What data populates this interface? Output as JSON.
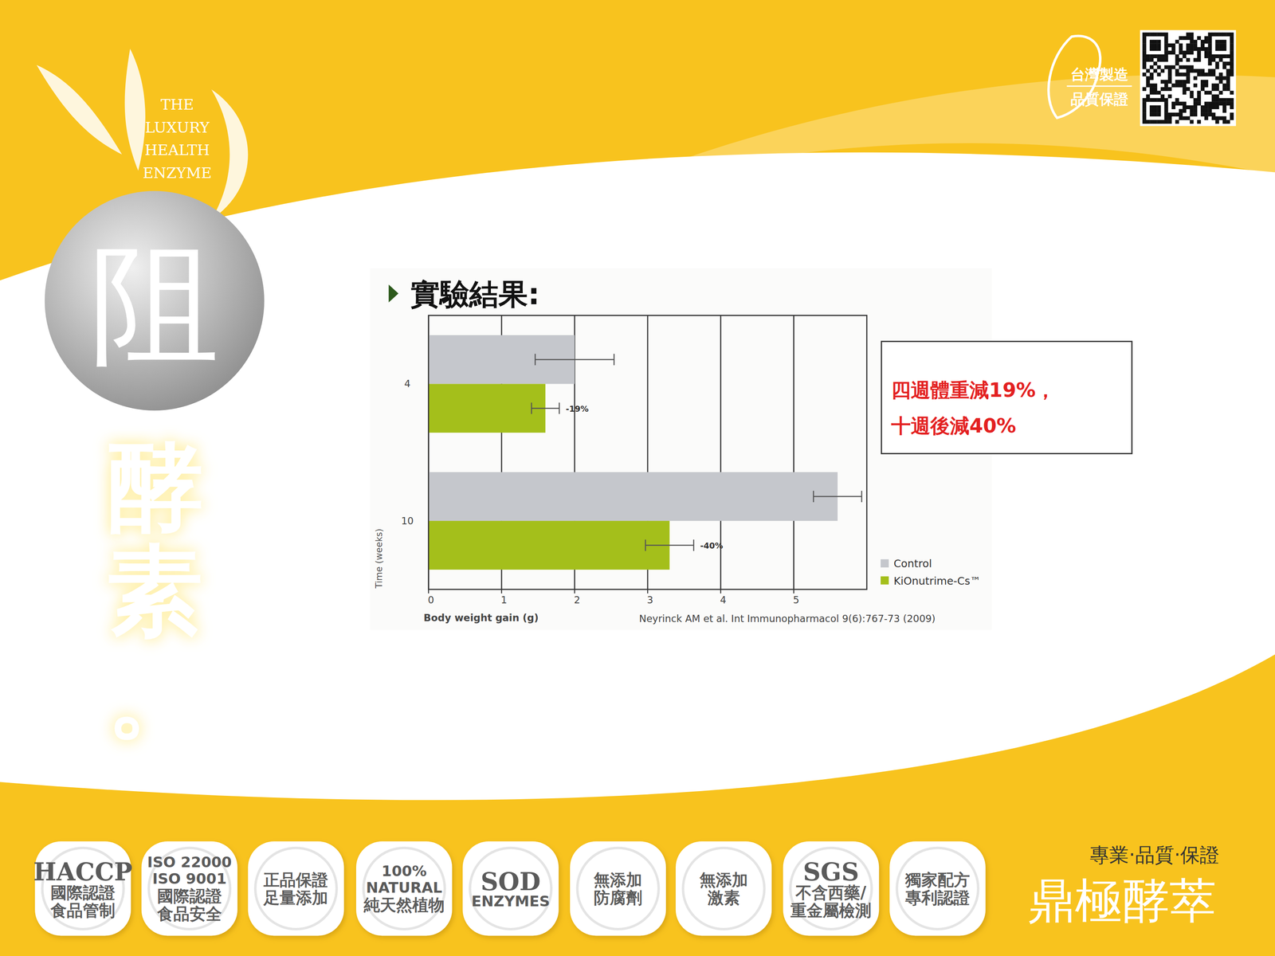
{
  "chart_data": {
    "type": "bar",
    "orientation": "horizontal",
    "title": "實驗結果:",
    "x_label": "Body weight gain (g)",
    "y_label": "Time (weeks)",
    "categories": [
      "4",
      "10"
    ],
    "series": [
      {
        "name": "Control",
        "color": "#c5c7cc",
        "values": [
          2.0,
          5.6
        ],
        "errors": [
          0.54,
          0.33
        ]
      },
      {
        "name": "KiOnutrime-Cs™",
        "color": "#a4bf1b",
        "values": [
          1.6,
          3.3
        ],
        "errors": [
          0.19,
          0.33
        ]
      }
    ],
    "xlim": [
      0,
      6
    ],
    "xticks": [
      0,
      1,
      2,
      3,
      4,
      5
    ],
    "grid": true,
    "legend": "lower right",
    "annotations": [
      "-19%",
      "-40%"
    ],
    "callout": [
      "四週體重減19%，",
      "十週後減40%"
    ],
    "source": "Neyrinck AM et al. Int Immunopharmacol 9(6):767-73 (2009)"
  },
  "page": {
    "logo": [
      "THE",
      "LUXURY",
      "HEALTH",
      "ENZYME"
    ],
    "emblem": "阻",
    "side_title": "酵素。",
    "made_in": [
      "台灣製造",
      "品質保證"
    ],
    "badges": [
      [
        "HACCP",
        "國際認證",
        "食品管制"
      ],
      [
        "ISO 22000",
        "ISO 9001",
        "國際認證",
        "食品安全"
      ],
      [
        "正品保證",
        "足量添加"
      ],
      [
        "100%",
        "NATURAL",
        "純天然植物"
      ],
      [
        "SOD",
        "ENZYMES"
      ],
      [
        "無添加",
        "防腐劑"
      ],
      [
        "無添加",
        "激素"
      ],
      [
        "SGS",
        "不含西藥/",
        "重金屬檢測"
      ],
      [
        "獨家配方",
        "專利認證"
      ]
    ],
    "slogan": "專業‧品質‧保證",
    "brand": "鼎極酵萃"
  }
}
